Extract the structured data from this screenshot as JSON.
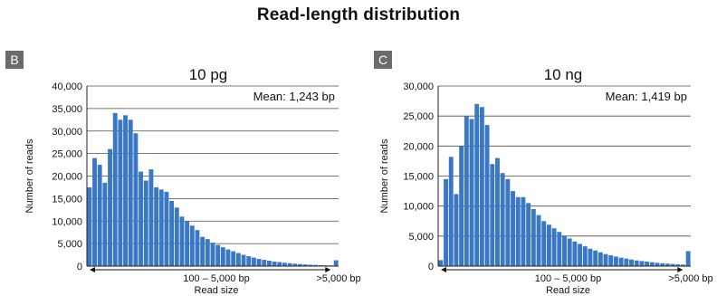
{
  "figure_title": "Read-length distribution",
  "panels": [
    {
      "letter": "B"
    },
    {
      "letter": "C"
    }
  ],
  "chart_data": [
    {
      "type": "bar",
      "title": "10 pg",
      "annotation": "Mean: 1,243 bp",
      "ylabel": "Number of reads",
      "xlabel": "Read size",
      "range_label": "100 – 5,000 bp",
      "overflow_label": ">5,000 bp",
      "ylim": [
        0,
        40000
      ],
      "yticks": [
        0,
        5000,
        10000,
        15000,
        20000,
        25000,
        30000,
        35000,
        40000
      ],
      "ytick_labels": [
        "0",
        "5,000",
        "10,000",
        "15,000",
        "20,000",
        "25,000",
        "30,000",
        "35,000",
        "40,000"
      ],
      "grid": true,
      "bar_color": "#3b78c3",
      "values": [
        17500,
        24000,
        22500,
        18500,
        26000,
        34000,
        32500,
        33500,
        32500,
        29500,
        21000,
        19000,
        21500,
        17500,
        17000,
        16500,
        14500,
        13000,
        11000,
        10000,
        9000,
        8000,
        6500,
        6000,
        5200,
        4700,
        4200,
        3700,
        3300,
        2900,
        2500,
        2200,
        1900,
        1600,
        1400,
        1200,
        1000,
        900,
        750,
        650,
        550,
        450,
        380,
        320,
        270,
        220,
        180,
        150,
        1300
      ],
      "overflow_value": 1300
    },
    {
      "type": "bar",
      "title": "10 ng",
      "annotation": "Mean: 1,419 bp",
      "ylabel": "Number of reads",
      "xlabel": "Read size",
      "range_label": "100 – 5,000 bp",
      "overflow_label": ">5,000 bp",
      "ylim": [
        0,
        30000
      ],
      "yticks": [
        0,
        5000,
        10000,
        15000,
        20000,
        25000,
        30000
      ],
      "ytick_labels": [
        "0",
        "5,000",
        "10,000",
        "15,000",
        "20,000",
        "25,000",
        "30,000"
      ],
      "grid": true,
      "bar_color": "#3b78c3",
      "values": [
        1000,
        14500,
        18200,
        12000,
        20000,
        25000,
        24500,
        27000,
        26500,
        23500,
        17000,
        18000,
        15500,
        14500,
        12500,
        11500,
        11500,
        10500,
        9500,
        8500,
        7500,
        6900,
        6300,
        5700,
        5100,
        4600,
        4100,
        3700,
        3300,
        2900,
        2600,
        2300,
        2000,
        1800,
        1600,
        1400,
        1250,
        1100,
        950,
        850,
        750,
        650,
        560,
        480,
        420,
        360,
        300,
        260,
        2500
      ],
      "overflow_value": 2500
    }
  ]
}
